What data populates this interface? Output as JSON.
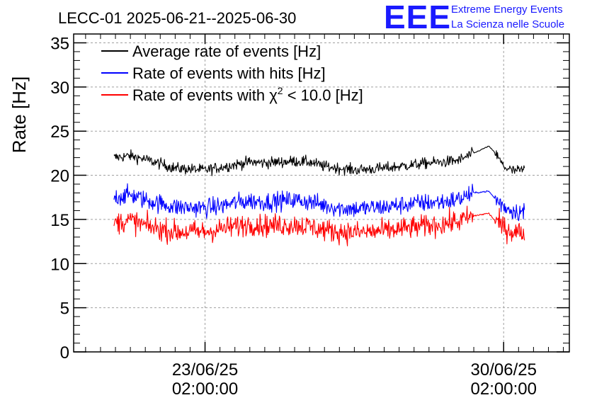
{
  "header": {
    "title": "LECC-01 2025-06-21--2025-06-30",
    "logo_text": "EEE",
    "logo_line1": "Extreme Energy Events",
    "logo_line2": "La Scienza nelle Scuole",
    "logo_color": "#1a1aff"
  },
  "chart_data": {
    "type": "line",
    "title": "LECC-01 2025-06-21--2025-06-30",
    "xlabel": "",
    "ylabel": "Rate [Hz]",
    "ylim": [
      0,
      36
    ],
    "yticks": [
      0,
      5,
      10,
      15,
      20,
      25,
      30,
      35
    ],
    "xlim_days": [
      -4.4,
      12.2
    ],
    "x_start_day": -3.05,
    "x_end_day": 10.7,
    "xticks": [
      {
        "day": 0,
        "line1": "23/06/25",
        "line2": "02:00:00"
      },
      {
        "day": 10,
        "line1": "30/06/25",
        "line2": "02:00:00"
      }
    ],
    "grid": true,
    "legend_position": "top-left",
    "legend": [
      {
        "label": "Average rate of events [Hz]",
        "color": "#000000"
      },
      {
        "label": "Rate of events with hits [Hz]",
        "color": "#0000ff"
      },
      {
        "label_pre": "Rate of events with ",
        "label_chi": "χ",
        "label_sup": "2",
        "label_post": " < 10.0 [Hz]",
        "color": "#ff0000"
      }
    ],
    "series": [
      {
        "color": "#000000",
        "noise": 0.45,
        "x": [
          -3.05,
          -2.5,
          -2.0,
          -1.5,
          -1.0,
          0.0,
          0.5,
          1.0,
          1.5,
          2.0,
          3.0,
          3.5,
          4.0,
          4.5,
          5.0,
          6.0,
          6.5,
          7.0,
          7.5,
          8.0,
          8.5,
          9.0,
          9.5,
          9.7,
          10.0,
          10.3,
          10.7
        ],
        "values": [
          22.0,
          22.2,
          21.8,
          21.3,
          20.8,
          20.6,
          20.9,
          21.2,
          21.5,
          21.4,
          21.6,
          21.5,
          21.0,
          20.8,
          20.6,
          20.8,
          21.0,
          21.2,
          21.4,
          21.5,
          21.7,
          22.5,
          23.3,
          22.6,
          21.0,
          20.5,
          20.6
        ]
      },
      {
        "color": "#0000ff",
        "noise": 0.75,
        "x": [
          -3.05,
          -2.5,
          -2.0,
          -1.5,
          -1.0,
          0.0,
          0.5,
          1.0,
          1.5,
          2.0,
          3.0,
          3.5,
          4.0,
          4.5,
          5.0,
          6.0,
          6.5,
          7.0,
          7.5,
          8.0,
          8.5,
          9.0,
          9.5,
          9.7,
          10.0,
          10.3,
          10.7
        ],
        "values": [
          17.5,
          17.8,
          17.2,
          16.8,
          16.4,
          16.3,
          16.5,
          16.9,
          17.1,
          17.0,
          17.2,
          17.0,
          16.6,
          16.3,
          16.2,
          16.4,
          16.6,
          16.8,
          16.9,
          17.0,
          17.3,
          18.0,
          18.2,
          17.4,
          16.5,
          16.0,
          15.8
        ]
      },
      {
        "color": "#ff0000",
        "noise": 0.9,
        "x": [
          -3.05,
          -2.5,
          -2.0,
          -1.5,
          -1.0,
          0.0,
          0.5,
          1.0,
          1.5,
          2.0,
          3.0,
          3.5,
          4.0,
          4.5,
          5.0,
          6.0,
          6.5,
          7.0,
          7.5,
          8.0,
          8.5,
          9.0,
          9.5,
          9.7,
          10.0,
          10.3,
          10.7
        ],
        "values": [
          14.6,
          14.9,
          14.3,
          13.9,
          13.6,
          13.6,
          13.9,
          14.2,
          14.5,
          14.3,
          14.4,
          14.2,
          13.8,
          13.6,
          13.5,
          13.7,
          13.9,
          14.1,
          14.3,
          14.5,
          14.8,
          15.4,
          15.7,
          14.9,
          14.1,
          13.6,
          13.5
        ]
      }
    ]
  }
}
